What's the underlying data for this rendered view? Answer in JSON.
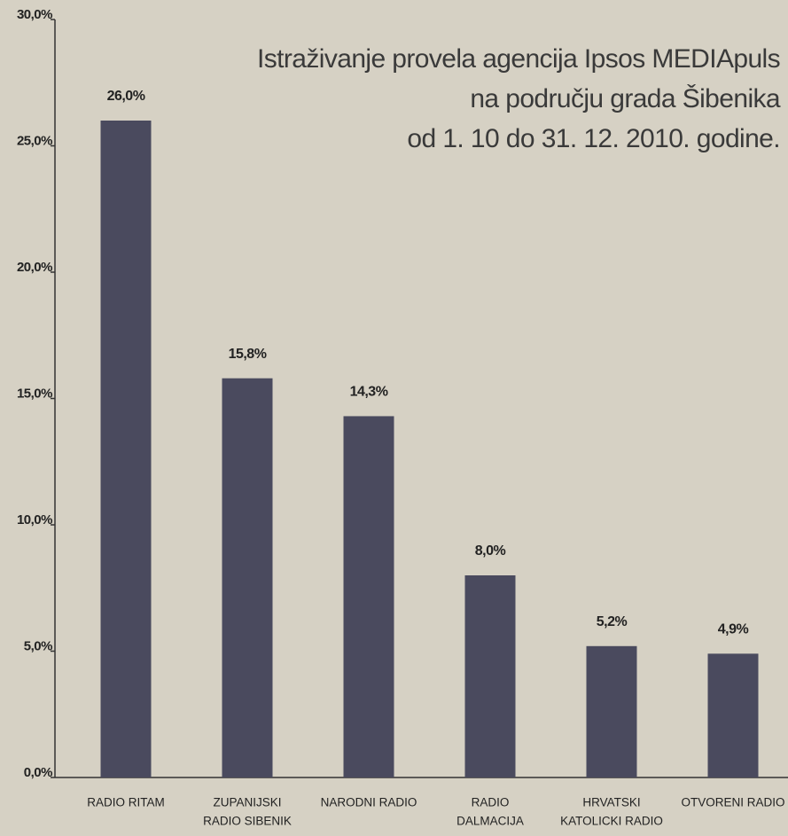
{
  "chart_data": {
    "type": "bar",
    "title": [
      "Istraživanje provela agencija Ipsos MEDIApuls",
      "na području grada Šibenika",
      "od 1. 10  do 31. 12. 2010. godine."
    ],
    "categories": [
      [
        "RADIO RITAM"
      ],
      [
        "ZUPANIJSKI",
        "RADIO SIBENIK"
      ],
      [
        "NARODNI RADIO"
      ],
      [
        "RADIO",
        "DALMACIJA"
      ],
      [
        "HRVATSKI",
        "KATOLICKI RADIO"
      ],
      [
        "OTVORENI RADIO"
      ]
    ],
    "values": [
      26.0,
      15.8,
      14.3,
      8.0,
      5.2,
      4.9
    ],
    "value_labels": [
      "26,0%",
      "15,8%",
      "14,3%",
      "8,0%",
      "5,2%",
      "4,9%"
    ],
    "color": "#4a4a5e",
    "ylim": [
      0,
      30
    ],
    "yticks": [
      {
        "value": 0,
        "label": "0,0%"
      },
      {
        "value": 5,
        "label": "5,0%"
      },
      {
        "value": 10,
        "label": "10,0%"
      },
      {
        "value": 15,
        "label": "15,0%"
      },
      {
        "value": 20,
        "label": "20,0%"
      },
      {
        "value": 25,
        "label": "25,0%"
      },
      {
        "value": 30,
        "label": "30,0%"
      }
    ],
    "grid": false
  }
}
